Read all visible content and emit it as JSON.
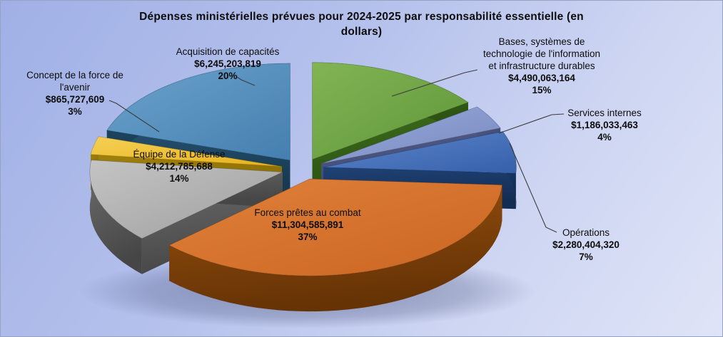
{
  "title": {
    "line1": "Dépenses ministérielles prévues pour 2024-2025 par responsabilité essentielle (en",
    "line2": "dollars)"
  },
  "background": {
    "gradient_from": "#a0b0e6",
    "gradient_to": "#dfe4f7",
    "border_color": "#97a2be"
  },
  "chart_data": {
    "type": "pie",
    "style": "3d-exploded",
    "title": "Dépenses ministérielles prévues pour 2024-2025 par responsabilité essentielle (en dollars)",
    "unit": "dollars",
    "legend": "none",
    "labels": "callout with name, dollar value and percent",
    "start_angle_deg": 0,
    "direction": "clockwise",
    "slices": [
      {
        "label": "Bases, systèmes de technologie de l'information et infrastructure durables",
        "label_lines": [
          "Bases, systèmes de",
          "technologie de l'information",
          "et infrastructure durables"
        ],
        "value": 4490063164,
        "value_display": "$4,490,063,164",
        "pct": 15,
        "pct_display": "15%",
        "color": "#5f9638",
        "color_light": "#82b455",
        "side_light": "#40701d",
        "side_dark": "#2a4f11"
      },
      {
        "label": "Services internes",
        "label_lines": [
          "Services internes"
        ],
        "value": 1186033463,
        "value_display": "$1,186,033,463",
        "pct": 4,
        "pct_display": "4%",
        "color": "#7487be",
        "color_light": "#9daedc",
        "side_light": "#535e8c",
        "side_dark": "#3c4668"
      },
      {
        "label": "Opérations",
        "label_lines": [
          "Opérations"
        ],
        "value": 2280404320,
        "value_display": "$2,280,404,320",
        "pct": 7,
        "pct_display": "7%",
        "color": "#3560aa",
        "color_light": "#5e86ca",
        "side_light": "#1f4275",
        "side_dark": "#132c52"
      },
      {
        "label": "Forces prêtes au combat",
        "label_lines": [
          "Forces prêtes au combat"
        ],
        "value": 11304585891,
        "value_display": "$11,304,585,891",
        "pct": 37,
        "pct_display": "37%",
        "color": "#ca6522",
        "color_light": "#e0813b",
        "side_light": "#97500f",
        "side_dark": "#663305"
      },
      {
        "label": "Équipe de la Défense",
        "label_lines": [
          "Équipe de la Défense"
        ],
        "value": 4212785688,
        "value_display": "$4,212,785,688",
        "pct": 14,
        "pct_display": "14%",
        "color": "#9e9e9e",
        "color_light": "#c4c4c4",
        "side_light": "#6e6e6e",
        "side_dark": "#464646"
      },
      {
        "label": "Concept de la force de l'avenir",
        "label_lines": [
          "Concept de la force de",
          "l'avenir"
        ],
        "value": 865727609,
        "value_display": "$865,727,609",
        "pct": 3,
        "pct_display": "3%",
        "color": "#e8b11c",
        "color_light": "#f5d055",
        "side_light": "#aa870f",
        "side_dark": "#856a05"
      },
      {
        "label": "Acquisition de capacités",
        "label_lines": [
          "Acquisition de capacités"
        ],
        "value": 6245203819,
        "value_display": "$6,245,203,819",
        "pct": 20,
        "pct_display": "20%",
        "color": "#457faf",
        "color_light": "#6ba3cc",
        "side_light": "#26506f",
        "side_dark": "#173a52"
      }
    ]
  }
}
